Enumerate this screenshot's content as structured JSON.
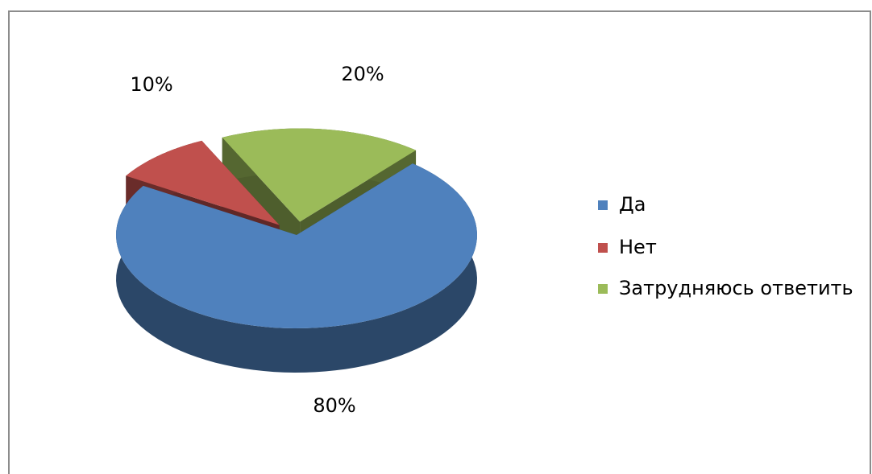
{
  "chart_data": {
    "type": "pie",
    "categories": [
      "Да",
      "Нет",
      "Затрудняюсь ответить"
    ],
    "values": [
      80,
      10,
      20
    ],
    "value_labels": [
      "80%",
      "10%",
      "20%"
    ],
    "colors": [
      "#4f81bd",
      "#c0504d",
      "#9bbb59"
    ],
    "legend": "right"
  }
}
